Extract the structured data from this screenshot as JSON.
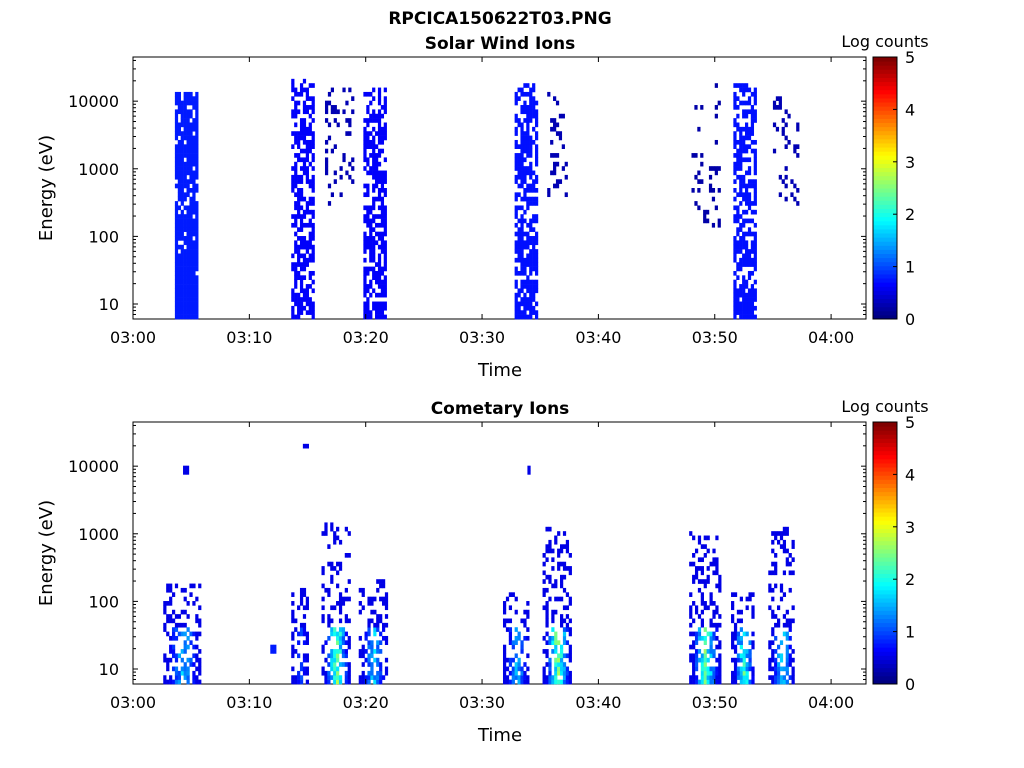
{
  "figure": {
    "title": "RPCICA150622T03.PNG"
  },
  "chart_data": [
    {
      "type": "heatmap",
      "title": "Solar Wind Ions",
      "xlabel": "Time",
      "ylabel": "Energy (eV)",
      "x_ticks": [
        "03:00",
        "03:10",
        "03:20",
        "03:30",
        "03:40",
        "03:50",
        "04:00"
      ],
      "xlim_minutes": [
        0,
        63
      ],
      "ylim": [
        6,
        45000
      ],
      "y_scale": "log",
      "y_ticks": [
        {
          "value": 10,
          "label": "10"
        },
        {
          "value": 100,
          "label": "100"
        },
        {
          "value": 1000,
          "label": "1000"
        },
        {
          "value": 10000,
          "label": "10000"
        }
      ],
      "colorbar": {
        "label": "Log counts",
        "range": [
          0,
          5
        ],
        "ticks": [
          "0",
          "1",
          "2",
          "3",
          "4",
          "5"
        ],
        "colormap": "jet"
      },
      "bursts": [
        {
          "t0": 3.6,
          "t1": 5.6,
          "elo": 6,
          "ehi": 13000,
          "density": 0.85,
          "base": 0.15,
          "lowBoost": 0.35,
          "seed": 1
        },
        {
          "t0": 13.6,
          "t1": 15.4,
          "elo": 6,
          "ehi": 19000,
          "density": 0.55,
          "base": 0.12,
          "lowBoost": 0.25,
          "seed": 2
        },
        {
          "t0": 16.5,
          "t1": 18.8,
          "elo": 300,
          "ehi": 15000,
          "density": 0.18,
          "base": 0.05,
          "lowBoost": 0,
          "seed": 3
        },
        {
          "t0": 19.8,
          "t1": 21.6,
          "elo": 6,
          "ehi": 14000,
          "density": 0.6,
          "base": 0.12,
          "lowBoost": 0.25,
          "seed": 4
        },
        {
          "t0": 32.8,
          "t1": 34.6,
          "elo": 6,
          "ehi": 16000,
          "density": 0.6,
          "base": 0.14,
          "lowBoost": 0.3,
          "seed": 5
        },
        {
          "t0": 35.6,
          "t1": 37.2,
          "elo": 400,
          "ehi": 12000,
          "density": 0.22,
          "base": 0.05,
          "lowBoost": 0,
          "seed": 6
        },
        {
          "t0": 48.0,
          "t1": 50.4,
          "elo": 150,
          "ehi": 16000,
          "density": 0.1,
          "base": 0.04,
          "lowBoost": 0,
          "seed": 7
        },
        {
          "t0": 51.6,
          "t1": 53.6,
          "elo": 6,
          "ehi": 16000,
          "density": 0.6,
          "base": 0.14,
          "lowBoost": 0.3,
          "seed": 8
        },
        {
          "t0": 55.0,
          "t1": 57.2,
          "elo": 250,
          "ehi": 11000,
          "density": 0.22,
          "base": 0.05,
          "lowBoost": 0,
          "seed": 9
        }
      ]
    },
    {
      "type": "heatmap",
      "title": "Cometary Ions",
      "xlabel": "Time",
      "ylabel": "Energy (eV)",
      "x_ticks": [
        "03:00",
        "03:10",
        "03:20",
        "03:30",
        "03:40",
        "03:50",
        "04:00"
      ],
      "xlim_minutes": [
        0,
        63
      ],
      "ylim": [
        6,
        45000
      ],
      "y_scale": "log",
      "y_ticks": [
        {
          "value": 10,
          "label": "10"
        },
        {
          "value": 100,
          "label": "100"
        },
        {
          "value": 1000,
          "label": "1000"
        },
        {
          "value": 10000,
          "label": "10000"
        }
      ],
      "colorbar": {
        "label": "Log counts",
        "range": [
          0,
          5
        ],
        "ticks": [
          "0",
          "1",
          "2",
          "3",
          "4",
          "5"
        ],
        "colormap": "jet"
      },
      "bursts": [
        {
          "t0": 2.6,
          "t1": 5.8,
          "elo": 6,
          "ehi": 180,
          "density": 0.25,
          "base": 0.1,
          "lowBoost": 0.5,
          "peak": 2.0,
          "seed": 11
        },
        {
          "t0": 4.3,
          "t1": 4.7,
          "elo": 8000,
          "ehi": 9000,
          "density": 1.0,
          "base": 0.1,
          "lowBoost": 0,
          "seed": 12
        },
        {
          "t0": 11.8,
          "t1": 12.3,
          "elo": 18,
          "ehi": 21,
          "density": 1.0,
          "base": 0.15,
          "lowBoost": 0,
          "seed": 13
        },
        {
          "t0": 13.6,
          "t1": 15.0,
          "elo": 6,
          "ehi": 150,
          "density": 0.2,
          "base": 0.1,
          "lowBoost": 0.4,
          "peak": 1.2,
          "seed": 14
        },
        {
          "t0": 14.6,
          "t1": 14.9,
          "elo": 19000,
          "ehi": 21000,
          "density": 1.0,
          "base": 0.1,
          "lowBoost": 0,
          "seed": 15
        },
        {
          "t0": 16.2,
          "t1": 18.6,
          "elo": 6,
          "ehi": 1300,
          "density": 0.25,
          "base": 0.1,
          "lowBoost": 0.6,
          "peak": 2.9,
          "seed": 16
        },
        {
          "t0": 19.4,
          "t1": 21.8,
          "elo": 6,
          "ehi": 200,
          "density": 0.25,
          "base": 0.1,
          "lowBoost": 0.5,
          "peak": 2.0,
          "seed": 17
        },
        {
          "t0": 31.8,
          "t1": 34.0,
          "elo": 6,
          "ehi": 130,
          "density": 0.22,
          "base": 0.1,
          "lowBoost": 0.5,
          "peak": 2.0,
          "seed": 18
        },
        {
          "t0": 33.9,
          "t1": 34.1,
          "elo": 8500,
          "ehi": 9000,
          "density": 1.0,
          "base": 0.1,
          "lowBoost": 0,
          "seed": 19
        },
        {
          "t0": 35.2,
          "t1": 37.6,
          "elo": 6,
          "ehi": 1100,
          "density": 0.28,
          "base": 0.1,
          "lowBoost": 0.6,
          "peak": 3.0,
          "seed": 20
        },
        {
          "t0": 47.8,
          "t1": 50.4,
          "elo": 6,
          "ehi": 1200,
          "density": 0.25,
          "base": 0.1,
          "lowBoost": 0.6,
          "peak": 2.8,
          "seed": 21
        },
        {
          "t0": 51.4,
          "t1": 53.4,
          "elo": 6,
          "ehi": 130,
          "density": 0.25,
          "base": 0.1,
          "lowBoost": 0.5,
          "peak": 2.6,
          "seed": 22
        },
        {
          "t0": 54.6,
          "t1": 56.8,
          "elo": 6,
          "ehi": 1200,
          "density": 0.25,
          "base": 0.1,
          "lowBoost": 0.5,
          "peak": 2.2,
          "seed": 23
        }
      ]
    }
  ]
}
